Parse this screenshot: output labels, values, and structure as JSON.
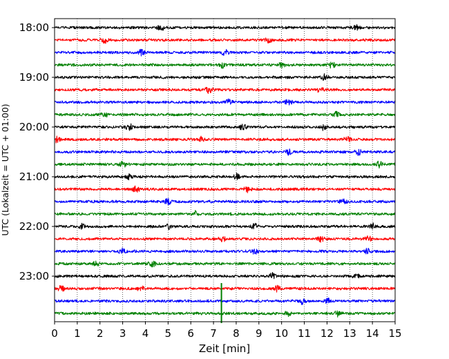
{
  "chart_data": {
    "type": "line",
    "title": "",
    "xlabel": "Zeit  [min]",
    "ylabel": "UTC (Lokalzeit = UTC + 01:00)",
    "xlim": [
      0,
      15
    ],
    "x_ticks": [
      0,
      1,
      2,
      3,
      4,
      5,
      6,
      7,
      8,
      9,
      10,
      11,
      12,
      13,
      14,
      15
    ],
    "x_tick_labels": [
      "0",
      "1",
      "2",
      "3",
      "4",
      "5",
      "6",
      "7",
      "8",
      "9",
      "10",
      "11",
      "12",
      "13",
      "14",
      "15"
    ],
    "y_tick_labels": [
      "18:00",
      "19:00",
      "20:00",
      "21:00",
      "22:00",
      "23:00"
    ],
    "grid": "vertical dotted lines at each minute",
    "trace_interval_minutes": 15,
    "trace_colors": [
      "#000000",
      "#ff0000",
      "#0000ff",
      "#008000"
    ],
    "traces": [
      {
        "start": "18:00",
        "color": "#000000",
        "events_min": [
          4.7,
          13.3
        ]
      },
      {
        "start": "18:15",
        "color": "#ff0000",
        "events_min": [
          2.2,
          9.4
        ]
      },
      {
        "start": "18:30",
        "color": "#0000ff",
        "events_min": [
          7.5,
          3.8
        ]
      },
      {
        "start": "18:45",
        "color": "#008000",
        "events_min": [
          7.4,
          10.0,
          12.2
        ]
      },
      {
        "start": "19:00",
        "color": "#000000",
        "events_min": [
          11.9
        ]
      },
      {
        "start": "19:15",
        "color": "#ff0000",
        "events_min": [
          6.8,
          11.7
        ]
      },
      {
        "start": "19:30",
        "color": "#0000ff",
        "events_min": [
          7.7,
          10.3
        ]
      },
      {
        "start": "19:45",
        "color": "#008000",
        "events_min": [
          2.2,
          12.4
        ]
      },
      {
        "start": "20:00",
        "color": "#000000",
        "events_min": [
          3.3,
          8.3,
          11.8
        ]
      },
      {
        "start": "20:15",
        "color": "#ff0000",
        "events_min": [
          0.1,
          6.5,
          12.9
        ]
      },
      {
        "start": "20:30",
        "color": "#0000ff",
        "events_min": [
          10.3,
          13.4
        ]
      },
      {
        "start": "20:45",
        "color": "#008000",
        "events_min": [
          3.0,
          14.3
        ]
      },
      {
        "start": "21:00",
        "color": "#000000",
        "events_min": [
          3.3,
          8.0
        ]
      },
      {
        "start": "21:15",
        "color": "#ff0000",
        "events_min": [
          3.6,
          8.5
        ]
      },
      {
        "start": "21:30",
        "color": "#0000ff",
        "events_min": [
          5.0,
          12.7
        ]
      },
      {
        "start": "21:45",
        "color": "#008000",
        "events_min": [
          6.2
        ]
      },
      {
        "start": "22:00",
        "color": "#000000",
        "events_min": [
          1.2,
          5.0,
          8.8,
          14.0
        ]
      },
      {
        "start": "22:15",
        "color": "#ff0000",
        "events_min": [
          7.4,
          11.7,
          13.8
        ]
      },
      {
        "start": "22:30",
        "color": "#0000ff",
        "events_min": [
          3.0,
          8.8,
          13.8
        ]
      },
      {
        "start": "22:45",
        "color": "#008000",
        "events_min": [
          1.8,
          4.3
        ]
      },
      {
        "start": "23:00",
        "color": "#000000",
        "events_min": [
          9.6,
          13.3
        ]
      },
      {
        "start": "23:15",
        "color": "#ff0000",
        "events_min": [
          0.3,
          3.8,
          9.8
        ]
      },
      {
        "start": "23:30",
        "color": "#0000ff",
        "events_min": [
          10.9,
          12.0
        ]
      },
      {
        "start": "23:45",
        "color": "#008000",
        "events_min": [
          10.3,
          12.5
        ]
      }
    ],
    "spike": {
      "x_min": 7.35,
      "from_trace": "23:15",
      "to_trace": "23:45",
      "color": "#008000"
    }
  }
}
